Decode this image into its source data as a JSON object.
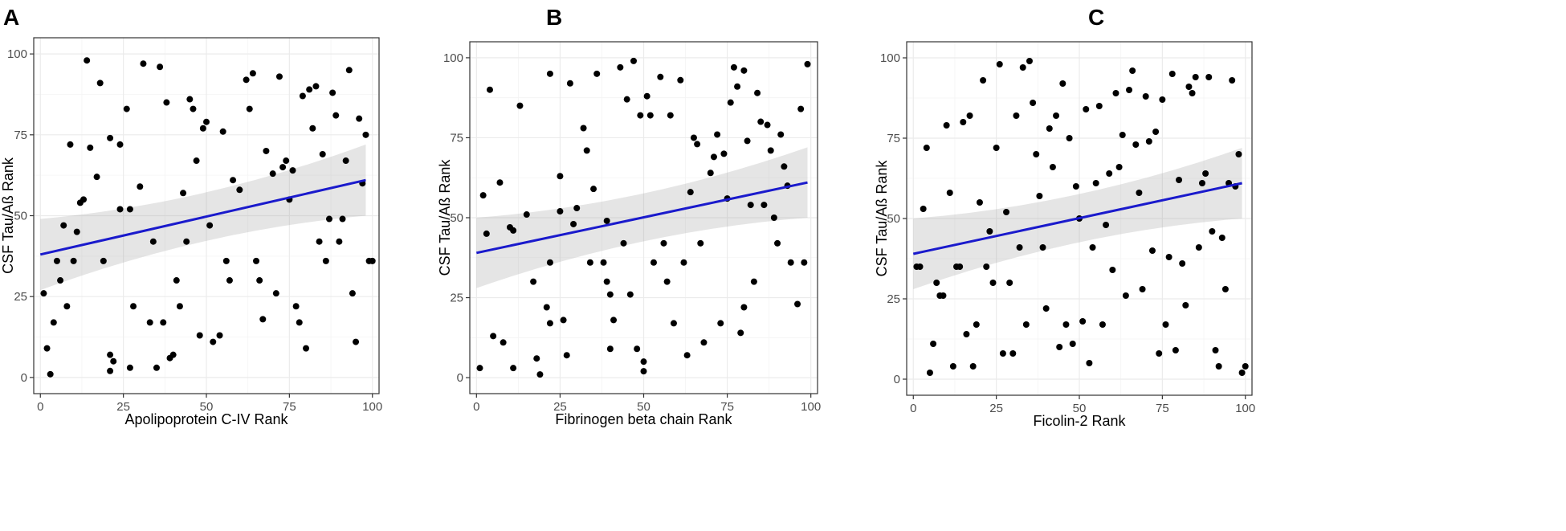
{
  "chart_data": [
    {
      "type": "scatter",
      "panel_label": "A",
      "xlabel": "Apolipoprotein C-IV Rank",
      "ylabel": "CSF Tau/Aß Rank",
      "xlim": [
        -2,
        102
      ],
      "ylim": [
        -5,
        105
      ],
      "xticks": [
        0,
        25,
        50,
        75,
        100
      ],
      "yticks": [
        0,
        25,
        50,
        75,
        100
      ],
      "grid": true,
      "trend": {
        "x": [
          0,
          98
        ],
        "y": [
          38,
          61
        ],
        "ci_lower": [
          27,
          50
        ],
        "ci_upper": [
          49,
          72
        ]
      },
      "points": {
        "x": [
          1,
          2,
          3,
          4,
          5,
          6,
          7,
          8,
          9,
          10,
          11,
          12,
          13,
          14,
          15,
          17,
          18,
          19,
          21,
          21,
          21,
          22,
          24,
          24,
          26,
          27,
          27,
          28,
          30,
          31,
          33,
          34,
          35,
          36,
          37,
          38,
          39,
          40,
          41,
          42,
          43,
          44,
          45,
          46,
          47,
          48,
          49,
          50,
          51,
          52,
          54,
          55,
          56,
          57,
          58,
          60,
          62,
          63,
          64,
          65,
          66,
          67,
          68,
          70,
          71,
          72,
          73,
          74,
          75,
          76,
          77,
          78,
          79,
          80,
          81,
          82,
          83,
          84,
          85,
          86,
          87,
          88,
          89,
          90,
          91,
          92,
          93,
          94,
          95,
          96,
          97,
          98,
          99,
          100
        ],
        "y": [
          26,
          9,
          1,
          17,
          36,
          30,
          47,
          22,
          72,
          36,
          45,
          54,
          55,
          98,
          71,
          62,
          91,
          36,
          74,
          7,
          2,
          5,
          72,
          52,
          83,
          52,
          3,
          22,
          59,
          97,
          17,
          42,
          3,
          96,
          17,
          85,
          6,
          7,
          30,
          22,
          57,
          42,
          86,
          83,
          67,
          13,
          77,
          79,
          47,
          11,
          13,
          76,
          36,
          30,
          61,
          58,
          92,
          83,
          94,
          36,
          30,
          18,
          70,
          63,
          26,
          93,
          65,
          67,
          55,
          64,
          22,
          17,
          87,
          9,
          89,
          77,
          90,
          42,
          69,
          36,
          49,
          88,
          81,
          42,
          49,
          67,
          95,
          26,
          11,
          80,
          60,
          75,
          36,
          36
        ]
      }
    },
    {
      "type": "scatter",
      "panel_label": "B",
      "xlabel": "Fibrinogen beta chain Rank",
      "ylabel": "CSF Tau/Aß Rank",
      "xlim": [
        -2,
        102
      ],
      "ylim": [
        -5,
        105
      ],
      "xticks": [
        0,
        25,
        50,
        75,
        100
      ],
      "yticks": [
        0,
        25,
        50,
        75,
        100
      ],
      "grid": true,
      "trend": {
        "x": [
          0,
          99
        ],
        "y": [
          39,
          61
        ],
        "ci_lower": [
          28,
          50
        ],
        "ci_upper": [
          50,
          72
        ]
      },
      "points": {
        "x": [
          1,
          2,
          3,
          4,
          5,
          7,
          8,
          10,
          11,
          11,
          13,
          15,
          17,
          18,
          19,
          21,
          22,
          22,
          22,
          25,
          25,
          26,
          27,
          28,
          29,
          30,
          32,
          33,
          34,
          35,
          36,
          38,
          39,
          39,
          40,
          40,
          41,
          43,
          44,
          45,
          46,
          47,
          48,
          49,
          50,
          50,
          51,
          52,
          53,
          55,
          56,
          57,
          58,
          59,
          61,
          62,
          63,
          64,
          65,
          66,
          67,
          68,
          70,
          71,
          72,
          73,
          74,
          75,
          76,
          77,
          78,
          79,
          80,
          80,
          81,
          82,
          83,
          84,
          85,
          86,
          87,
          88,
          89,
          90,
          91,
          92,
          93,
          94,
          96,
          97,
          98,
          99
        ],
        "y": [
          3,
          57,
          45,
          90,
          13,
          61,
          11,
          47,
          46,
          3,
          85,
          51,
          30,
          6,
          1,
          22,
          95,
          17,
          36,
          63,
          52,
          18,
          7,
          92,
          48,
          53,
          78,
          71,
          36,
          59,
          95,
          36,
          49,
          30,
          26,
          9,
          18,
          97,
          42,
          87,
          26,
          99,
          9,
          82,
          2,
          5,
          88,
          82,
          36,
          94,
          42,
          30,
          82,
          17,
          93,
          36,
          7,
          58,
          75,
          73,
          42,
          11,
          64,
          69,
          76,
          17,
          70,
          56,
          86,
          97,
          91,
          14,
          22,
          96,
          74,
          54,
          30,
          89,
          80,
          54,
          79,
          71,
          50,
          42,
          76,
          66,
          60,
          36,
          23,
          84,
          36,
          98
        ]
      }
    },
    {
      "type": "scatter",
      "panel_label": "C",
      "xlabel": "Ficolin-2 Rank",
      "ylabel": "CSF Tau/Aß Rank",
      "xlim": [
        -2,
        102
      ],
      "ylim": [
        -5,
        105
      ],
      "xticks": [
        0,
        25,
        50,
        75,
        100
      ],
      "yticks": [
        0,
        25,
        50,
        75,
        100
      ],
      "grid": true,
      "trend": {
        "x": [
          0,
          99
        ],
        "y": [
          39,
          61
        ],
        "ci_lower": [
          28,
          50
        ],
        "ci_upper": [
          50,
          72
        ]
      },
      "points": {
        "x": [
          1,
          2,
          3,
          4,
          5,
          6,
          7,
          8,
          9,
          10,
          11,
          12,
          13,
          14,
          15,
          16,
          17,
          18,
          19,
          20,
          21,
          22,
          23,
          24,
          25,
          26,
          27,
          28,
          29,
          30,
          31,
          32,
          33,
          34,
          35,
          36,
          37,
          38,
          39,
          40,
          41,
          42,
          43,
          44,
          45,
          46,
          47,
          48,
          49,
          50,
          51,
          52,
          53,
          54,
          55,
          56,
          57,
          58,
          59,
          60,
          61,
          62,
          63,
          64,
          65,
          66,
          67,
          68,
          69,
          70,
          71,
          72,
          73,
          74,
          75,
          76,
          77,
          78,
          79,
          80,
          81,
          82,
          83,
          84,
          85,
          86,
          87,
          88,
          89,
          90,
          91,
          92,
          93,
          94,
          95,
          96,
          97,
          98,
          99,
          100
        ],
        "y": [
          35,
          35,
          53,
          72,
          2,
          11,
          30,
          26,
          26,
          79,
          58,
          4,
          35,
          35,
          80,
          14,
          82,
          4,
          17,
          55,
          93,
          35,
          46,
          30,
          72,
          98,
          8,
          52,
          30,
          8,
          82,
          41,
          97,
          17,
          99,
          86,
          70,
          57,
          41,
          22,
          78,
          66,
          82,
          10,
          92,
          17,
          75,
          11,
          60,
          50,
          18,
          84,
          5,
          41,
          61,
          85,
          17,
          48,
          64,
          34,
          89,
          66,
          76,
          26,
          90,
          96,
          73,
          58,
          28,
          88,
          74,
          40,
          77,
          8,
          87,
          17,
          38,
          95,
          9,
          62,
          36,
          23,
          91,
          89,
          94,
          41,
          61,
          64,
          94,
          46,
          9,
          4,
          44,
          28,
          61,
          93,
          60,
          70,
          2,
          4
        ]
      }
    }
  ]
}
